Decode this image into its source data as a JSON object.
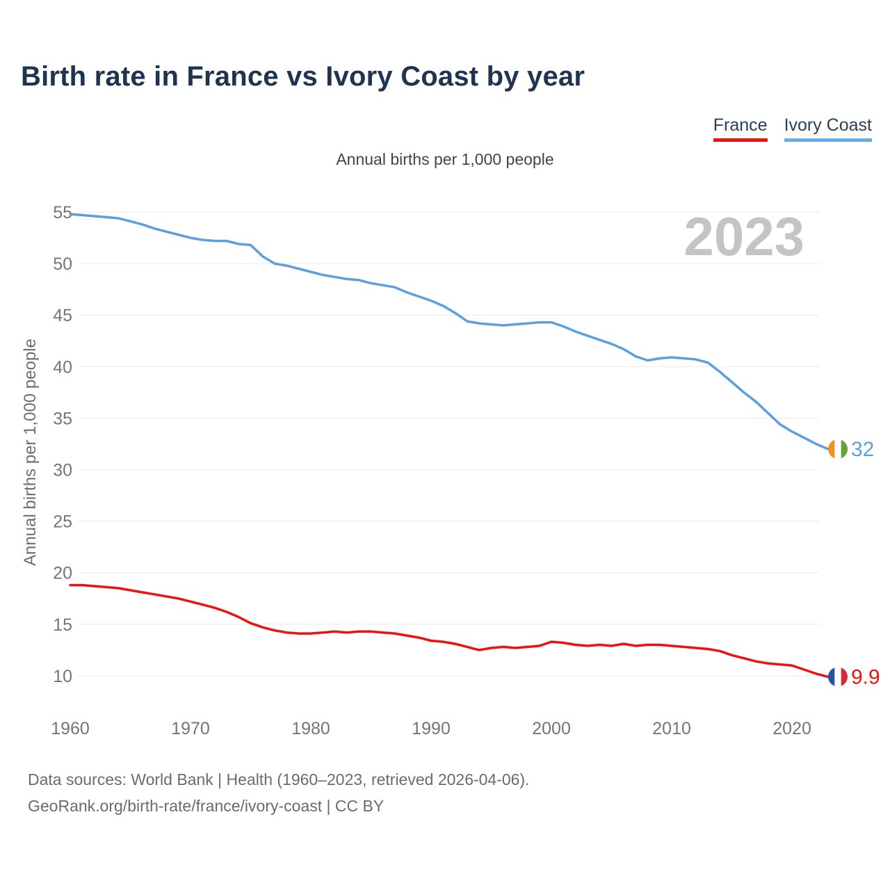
{
  "header": {
    "title": "Birth rate in France vs Ivory Coast by year"
  },
  "legend": {
    "items": [
      {
        "label": "France",
        "color": "#ee1111"
      },
      {
        "label": "Ivory Coast",
        "color": "#6aade4"
      }
    ]
  },
  "chart_data": {
    "type": "line",
    "title": "Birth rate in France vs Ivory Coast by year",
    "subtitle": "Annual births per 1,000 people",
    "ylabel": "Annual births per 1,000 people",
    "xlabel": "",
    "watermark": "2023",
    "grid": "horizontal",
    "legend_position": "top-right",
    "xlim": [
      1960,
      2023
    ],
    "ylim": [
      8,
      56
    ],
    "x_ticks": [
      1960,
      1970,
      1980,
      1990,
      2000,
      2010,
      2020
    ],
    "y_ticks": [
      55,
      50,
      45,
      40,
      35,
      30,
      25,
      20,
      15,
      10
    ],
    "x_start_year": 1960,
    "series": [
      {
        "name": "France",
        "color": "#ee1111",
        "end_label": "9.9",
        "end_value": 9.9,
        "flag_icon": "france-flag-icon",
        "flag_stripes": [
          "#2a52a3",
          "#ffffff",
          "#d02a3e"
        ],
        "values": [
          18.8,
          18.8,
          18.7,
          18.6,
          18.5,
          18.3,
          18.1,
          17.9,
          17.7,
          17.5,
          17.2,
          16.9,
          16.6,
          16.2,
          15.7,
          15.1,
          14.7,
          14.4,
          14.2,
          14.1,
          14.1,
          14.2,
          14.3,
          14.2,
          14.3,
          14.3,
          14.2,
          14.1,
          13.9,
          13.7,
          13.4,
          13.3,
          13.1,
          12.8,
          12.5,
          12.7,
          12.8,
          12.7,
          12.8,
          12.9,
          13.3,
          13.2,
          13.0,
          12.9,
          13.0,
          12.9,
          13.1,
          12.9,
          13.0,
          13.0,
          12.9,
          12.8,
          12.7,
          12.6,
          12.4,
          12.0,
          11.7,
          11.4,
          11.2,
          11.1,
          11.0,
          10.6,
          10.2,
          9.9
        ]
      },
      {
        "name": "Ivory Coast",
        "color": "#5b9fe0",
        "end_label": "32",
        "end_value": 32,
        "flag_icon": "ivory-coast-flag-icon",
        "flag_stripes": [
          "#f78f1e",
          "#ffffff",
          "#62a43c"
        ],
        "values": [
          54.8,
          54.7,
          54.6,
          54.5,
          54.4,
          54.1,
          53.8,
          53.4,
          53.1,
          52.8,
          52.5,
          52.3,
          52.2,
          52.2,
          51.9,
          51.8,
          50.7,
          50.0,
          49.8,
          49.5,
          49.2,
          48.9,
          48.7,
          48.5,
          48.4,
          48.1,
          47.9,
          47.7,
          47.2,
          46.8,
          46.4,
          45.9,
          45.2,
          44.4,
          44.2,
          44.1,
          44.0,
          44.1,
          44.2,
          44.3,
          44.3,
          43.9,
          43.4,
          43.0,
          42.6,
          42.2,
          41.7,
          41.0,
          40.6,
          40.8,
          40.9,
          40.8,
          40.7,
          40.4,
          39.5,
          38.5,
          37.5,
          36.6,
          35.5,
          34.4,
          33.7,
          33.1,
          32.5,
          32.0
        ]
      }
    ]
  },
  "footer": {
    "line1": "Data sources: World Bank | Health (1960–2023, retrieved 2026-04-06).",
    "line2": "GeoRank.org/birth-rate/france/ivory-coast | CC BY"
  }
}
